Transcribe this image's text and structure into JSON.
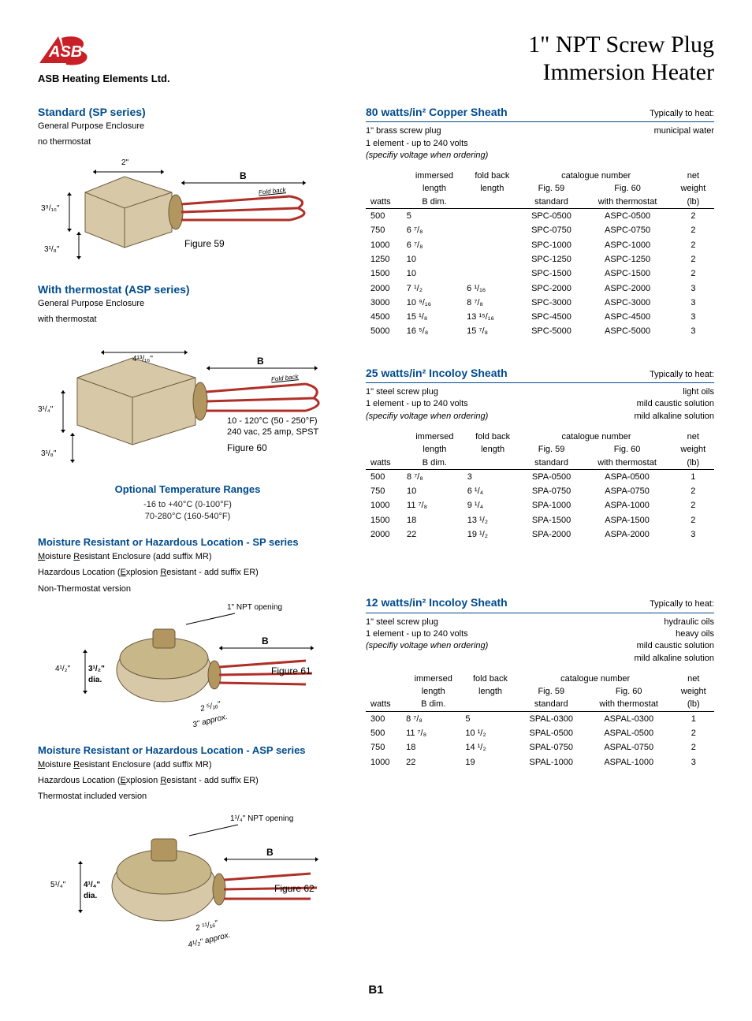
{
  "colors": {
    "brand_blue": "#004b8d",
    "brand_red": "#c92027",
    "text": "#000000",
    "bg": "#ffffff"
  },
  "header": {
    "company": "ASB Heating Elements Ltd.",
    "title_line1": "1\" NPT Screw Plug",
    "title_line2": "Immersion Heater"
  },
  "standard": {
    "heading": "Standard (SP series)",
    "sub1": "General Purpose Enclosure",
    "sub2": "no thermostat",
    "fig_label": "Figure 59",
    "foldback": "Fold back",
    "dim_top": "2\"",
    "dim_mid": "3⁹/₁₆\"",
    "dim_bot": "3¹/₈\"",
    "b": "B"
  },
  "asp": {
    "heading": "With thermostat (ASP series)",
    "sub1": "General Purpose Enclosure",
    "sub2": "with thermostat",
    "fig_label": "Figure 60",
    "foldback": "Fold back",
    "dim_top": "4¹³/₁₆\"",
    "dim_mid": "3¹/₄\"",
    "dim_bot": "3¹/₈\"",
    "b": "B",
    "note1": "10 - 120°C (50 - 250°F)",
    "note2": "240 vac, 25 amp, SPST"
  },
  "temp": {
    "heading": "Optional Temperature Ranges",
    "r1": "-16 to +40°C (0-100°F)",
    "r2": "70-280°C (160-540°F)"
  },
  "mr_sp": {
    "heading": "Moisture Resistant or Hazardous Location - SP series",
    "l1a": "M",
    "l1b": "oisture ",
    "l1c": "R",
    "l1d": "esistant Enclosure (add suffix MR)",
    "l2a": "Hazardous Location (",
    "l2b": "E",
    "l2c": "xplosion ",
    "l2d": "R",
    "l2e": "esistant - add suffix  ER)",
    "l3": "Non-Thermostat version",
    "fig_label": "Figure 61",
    "npt": "1\" NPT opening",
    "b": "B",
    "d1": "4¹/₂\"",
    "d2": "3¹/₂\"",
    "d3": "dia.",
    "d4": "2 ⁵/₁₆\"",
    "d5": "3\" approx."
  },
  "mr_asp": {
    "heading": "Moisture Resistant or Hazardous Location - ASP series",
    "l1a": "M",
    "l1b": "oisture ",
    "l1c": "R",
    "l1d": "esistant Enclosure (add suffix MR)",
    "l2a": "Hazardous Location (",
    "l2b": "E",
    "l2c": "xplosion ",
    "l2d": "R",
    "l2e": "esistant - add suffix  ER)",
    "l3": "Thermostat included version",
    "fig_label": "Figure 62",
    "npt": "1¹/₄\" NPT opening",
    "b": "B",
    "d1": "5¹/₄\"",
    "d2": "4¹/₄\"",
    "d3": "dia.",
    "d4": "2 ¹¹/₁₆\"",
    "d5": "4¹/₂\" approx."
  },
  "tables_common": {
    "th_watts": "watts",
    "th_imm1": "immersed",
    "th_imm2": "length",
    "th_imm3": "B dim.",
    "th_fb1": "fold back",
    "th_fb2": "length",
    "th_cat": "catalogue number",
    "th_f59a": "Fig. 59",
    "th_f59b": "standard",
    "th_f60a": "Fig. 60",
    "th_f60b": "with thermostat",
    "th_net1": "net",
    "th_net2": "weight",
    "th_net3": "(lb)"
  },
  "spec1": {
    "head_l": "80 watts/in²   Copper Sheath",
    "head_r": "Typically to heat:",
    "sub_l1": "1\" brass screw plug",
    "sub_l2": "1 element - up to 240 volts",
    "sub_l3": "(specifiy voltage when ordering)",
    "sub_r1": "municipal water",
    "rows": [
      [
        "500",
        "5",
        "",
        "SPC-0500",
        "ASPC-0500",
        "2"
      ],
      [
        "750",
        "6 ⁷/₈",
        "",
        "SPC-0750",
        "ASPC-0750",
        "2"
      ],
      [
        "1000",
        "6 ⁷/₈",
        "",
        "SPC-1000",
        "ASPC-1000",
        "2"
      ],
      [
        "1250",
        "10",
        "",
        "SPC-1250",
        "ASPC-1250",
        "2"
      ],
      [
        "1500",
        "10",
        "",
        "SPC-1500",
        "ASPC-1500",
        "2"
      ],
      [
        "2000",
        "7 ¹/₂",
        "6 ¹/₁₆",
        "SPC-2000",
        "ASPC-2000",
        "3"
      ],
      [
        "3000",
        "10 ⁹/₁₆",
        "8 ⁷/₈",
        "SPC-3000",
        "ASPC-3000",
        "3"
      ],
      [
        "4500",
        "15 ¹/₈",
        "13 ¹⁵/₁₆",
        "SPC-4500",
        "ASPC-4500",
        "3"
      ],
      [
        "5000",
        "16 ⁵/₈",
        "15 ⁷/₈",
        "SPC-5000",
        "ASPC-5000",
        "3"
      ]
    ]
  },
  "spec2": {
    "head_l": "25 watts/in²   Incoloy Sheath",
    "head_r": "Typically to heat:",
    "sub_l1": "1\" steel screw plug",
    "sub_l2": "1 element - up to 240 volts",
    "sub_l3": "(specifiy voltage when ordering)",
    "sub_r1": "light oils",
    "sub_r2": "mild caustic solution",
    "sub_r3": "mild alkaline solution",
    "rows": [
      [
        "500",
        "8 ⁷/₈",
        "3",
        "SPA-0500",
        "ASPA-0500",
        "1"
      ],
      [
        "750",
        "10",
        "6 ¹/₄",
        "SPA-0750",
        "ASPA-0750",
        "2"
      ],
      [
        "1000",
        "11 ⁷/₈",
        "9 ¹/₄",
        "SPA-1000",
        "ASPA-1000",
        "2"
      ],
      [
        "1500",
        "18",
        "13 ¹/₂",
        "SPA-1500",
        "ASPA-1500",
        "2"
      ],
      [
        "2000",
        "22",
        "19 ¹/₂",
        "SPA-2000",
        "ASPA-2000",
        "3"
      ]
    ]
  },
  "spec3": {
    "head_l": "12 watts/in²   Incoloy Sheath",
    "head_r": "Typically to heat:",
    "sub_l1": "1\" steel screw plug",
    "sub_l2": "1 element - up to 240 volts",
    "sub_l3": "(specifiy voltage when ordering)",
    "sub_r1": "hydraulic oils",
    "sub_r2": "heavy oils",
    "sub_r3": "mild caustic solution",
    "sub_r4": "mild alkaline solution",
    "rows": [
      [
        "300",
        "8 ⁷/₈",
        "5",
        "SPAL-0300",
        "ASPAL-0300",
        "1"
      ],
      [
        "500",
        "11 ⁷/₈",
        "10 ¹/₂",
        "SPAL-0500",
        "ASPAL-0500",
        "2"
      ],
      [
        "750",
        "18",
        "14 ¹/₂",
        "SPAL-0750",
        "ASPAL-0750",
        "2"
      ],
      [
        "1000",
        "22",
        "19",
        "SPAL-1000",
        "ASPAL-1000",
        "3"
      ]
    ]
  },
  "page_num": "B1"
}
